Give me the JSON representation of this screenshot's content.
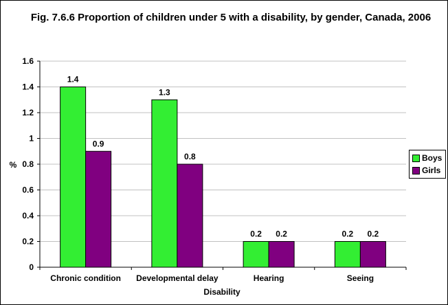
{
  "chart_data": {
    "type": "bar",
    "title": "Fig. 7.6.6 Proportion of children under 5 with a disability, by gender, Canada, 2006",
    "xlabel": "Disability",
    "ylabel": "%",
    "categories": [
      "Chronic condition",
      "Developmental delay",
      "Hearing",
      "Seeing"
    ],
    "series": [
      {
        "name": "Boys",
        "values": [
          1.4,
          1.3,
          0.2,
          0.2
        ],
        "color": "#33ee33"
      },
      {
        "name": "Girls",
        "values": [
          0.9,
          0.8,
          0.2,
          0.2
        ],
        "color": "#800080"
      }
    ],
    "ylim": [
      0,
      1.6
    ],
    "yticks": [
      "0",
      "0.2",
      "0.4",
      "0.6",
      "0.8",
      "1",
      "1.2",
      "1.4",
      "1.6"
    ],
    "data_labels": [
      [
        "1.4",
        "1.3",
        "0.2",
        "0.2"
      ],
      [
        "0.9",
        "0.8",
        "0.2",
        "0.2"
      ]
    ],
    "grid": true,
    "legend": "right",
    "plot_background": "#ffffff",
    "gridline_color": "#c0c0c0"
  }
}
